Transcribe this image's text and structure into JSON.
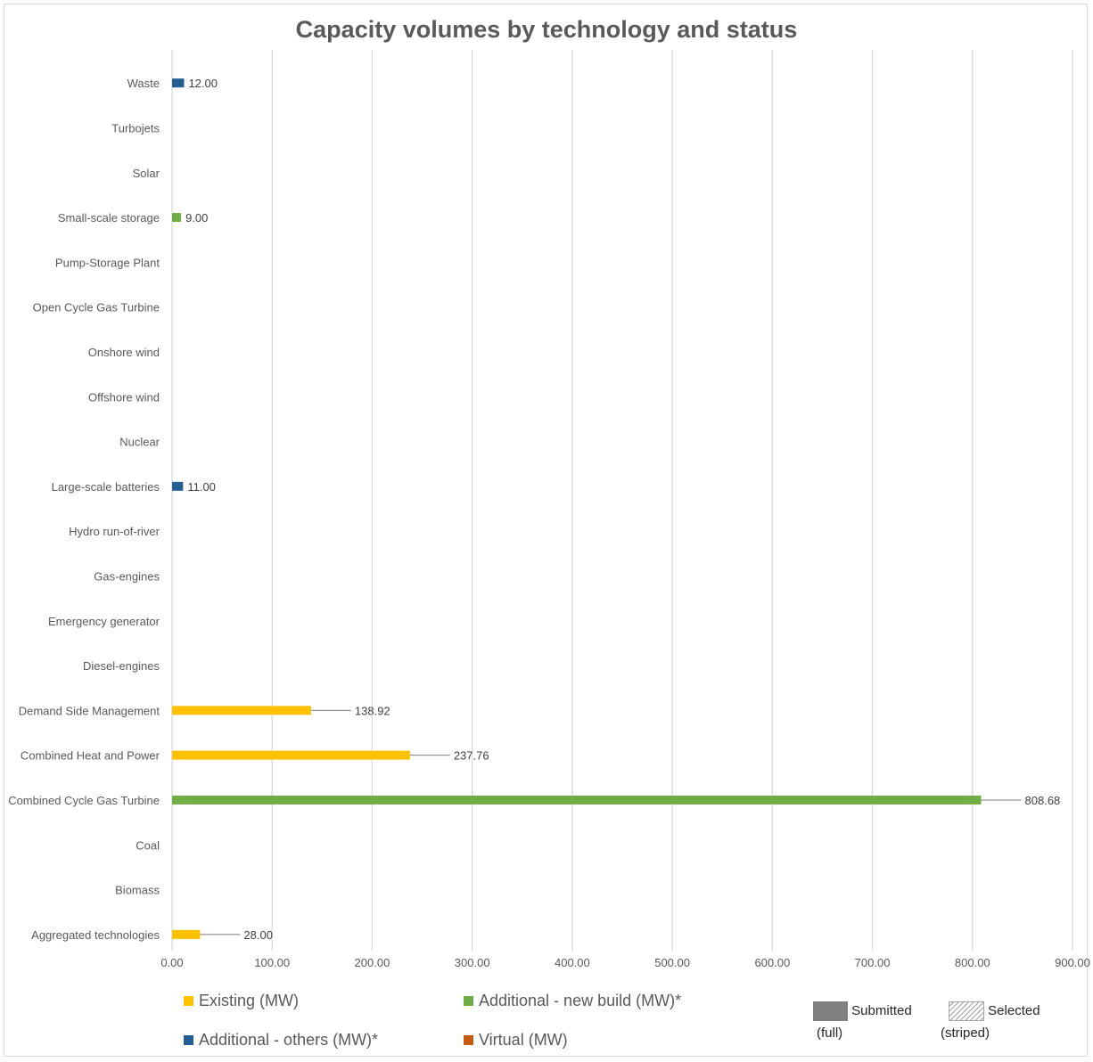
{
  "chart_data": {
    "type": "bar",
    "orientation": "horizontal",
    "title": "Capacity volumes by technology and status",
    "categories": [
      "Waste",
      "Turbojets",
      "Solar",
      "Small-scale storage",
      "Pump-Storage Plant",
      "Open Cycle Gas Turbine",
      "Onshore wind",
      "Offshore wind",
      "Nuclear",
      "Large-scale batteries",
      "Hydro run-of-river",
      "Gas-engines",
      "Emergency generator",
      "Diesel-engines",
      "Demand Side Management",
      "Combined Heat and Power",
      "Combined Cycle Gas Turbine",
      "Coal",
      "Biomass",
      "Aggregated technologies"
    ],
    "series": [
      {
        "name": "Existing (MW)",
        "color": "#FFC000",
        "values": [
          0,
          0,
          0,
          0,
          0,
          0,
          0,
          0,
          0,
          0,
          0,
          0,
          0,
          0,
          138.92,
          237.76,
          0,
          0,
          0,
          28.0
        ]
      },
      {
        "name": "Additional - new build (MW)*",
        "color": "#70AD47",
        "values": [
          0,
          0,
          0,
          9.0,
          0,
          0,
          0,
          0,
          0,
          0,
          0,
          0,
          0,
          0,
          0,
          0,
          808.68,
          0,
          0,
          0
        ]
      },
      {
        "name": "Additional - others (MW)*",
        "color": "#255E91",
        "values": [
          12.0,
          0,
          0,
          0,
          0,
          0,
          0,
          0,
          0,
          11.0,
          0,
          0,
          0,
          0,
          0,
          0,
          0,
          0,
          0,
          0
        ]
      },
      {
        "name": "Virtual (MW)",
        "color": "#C55A11",
        "values": [
          0,
          0,
          0,
          0,
          0,
          0,
          0,
          0,
          0,
          0,
          0,
          0,
          0,
          0,
          0,
          0,
          0,
          0,
          0,
          0
        ]
      }
    ],
    "data_labels": [
      {
        "category": "Waste",
        "text": "12.00"
      },
      {
        "category": "Small-scale storage",
        "text": "9.00"
      },
      {
        "category": "Large-scale batteries",
        "text": "11.00"
      },
      {
        "category": "Demand Side Management",
        "text": "138.92"
      },
      {
        "category": "Combined Heat and Power",
        "text": "237.76"
      },
      {
        "category": "Combined Cycle Gas Turbine",
        "text": "808.68"
      },
      {
        "category": "Aggregated technologies",
        "text": "28.00"
      }
    ],
    "xlim": [
      0,
      900
    ],
    "xticks": [
      "0.00",
      "100.00",
      "200.00",
      "300.00",
      "400.00",
      "500.00",
      "600.00",
      "700.00",
      "800.00",
      "900.00"
    ],
    "grid": true,
    "legend_position": "bottom"
  },
  "status_legend": {
    "submitted": {
      "label": "Submitted",
      "sub": "(full)",
      "color": "#808080"
    },
    "selected": {
      "label": "Selected",
      "sub": "(striped)"
    }
  }
}
